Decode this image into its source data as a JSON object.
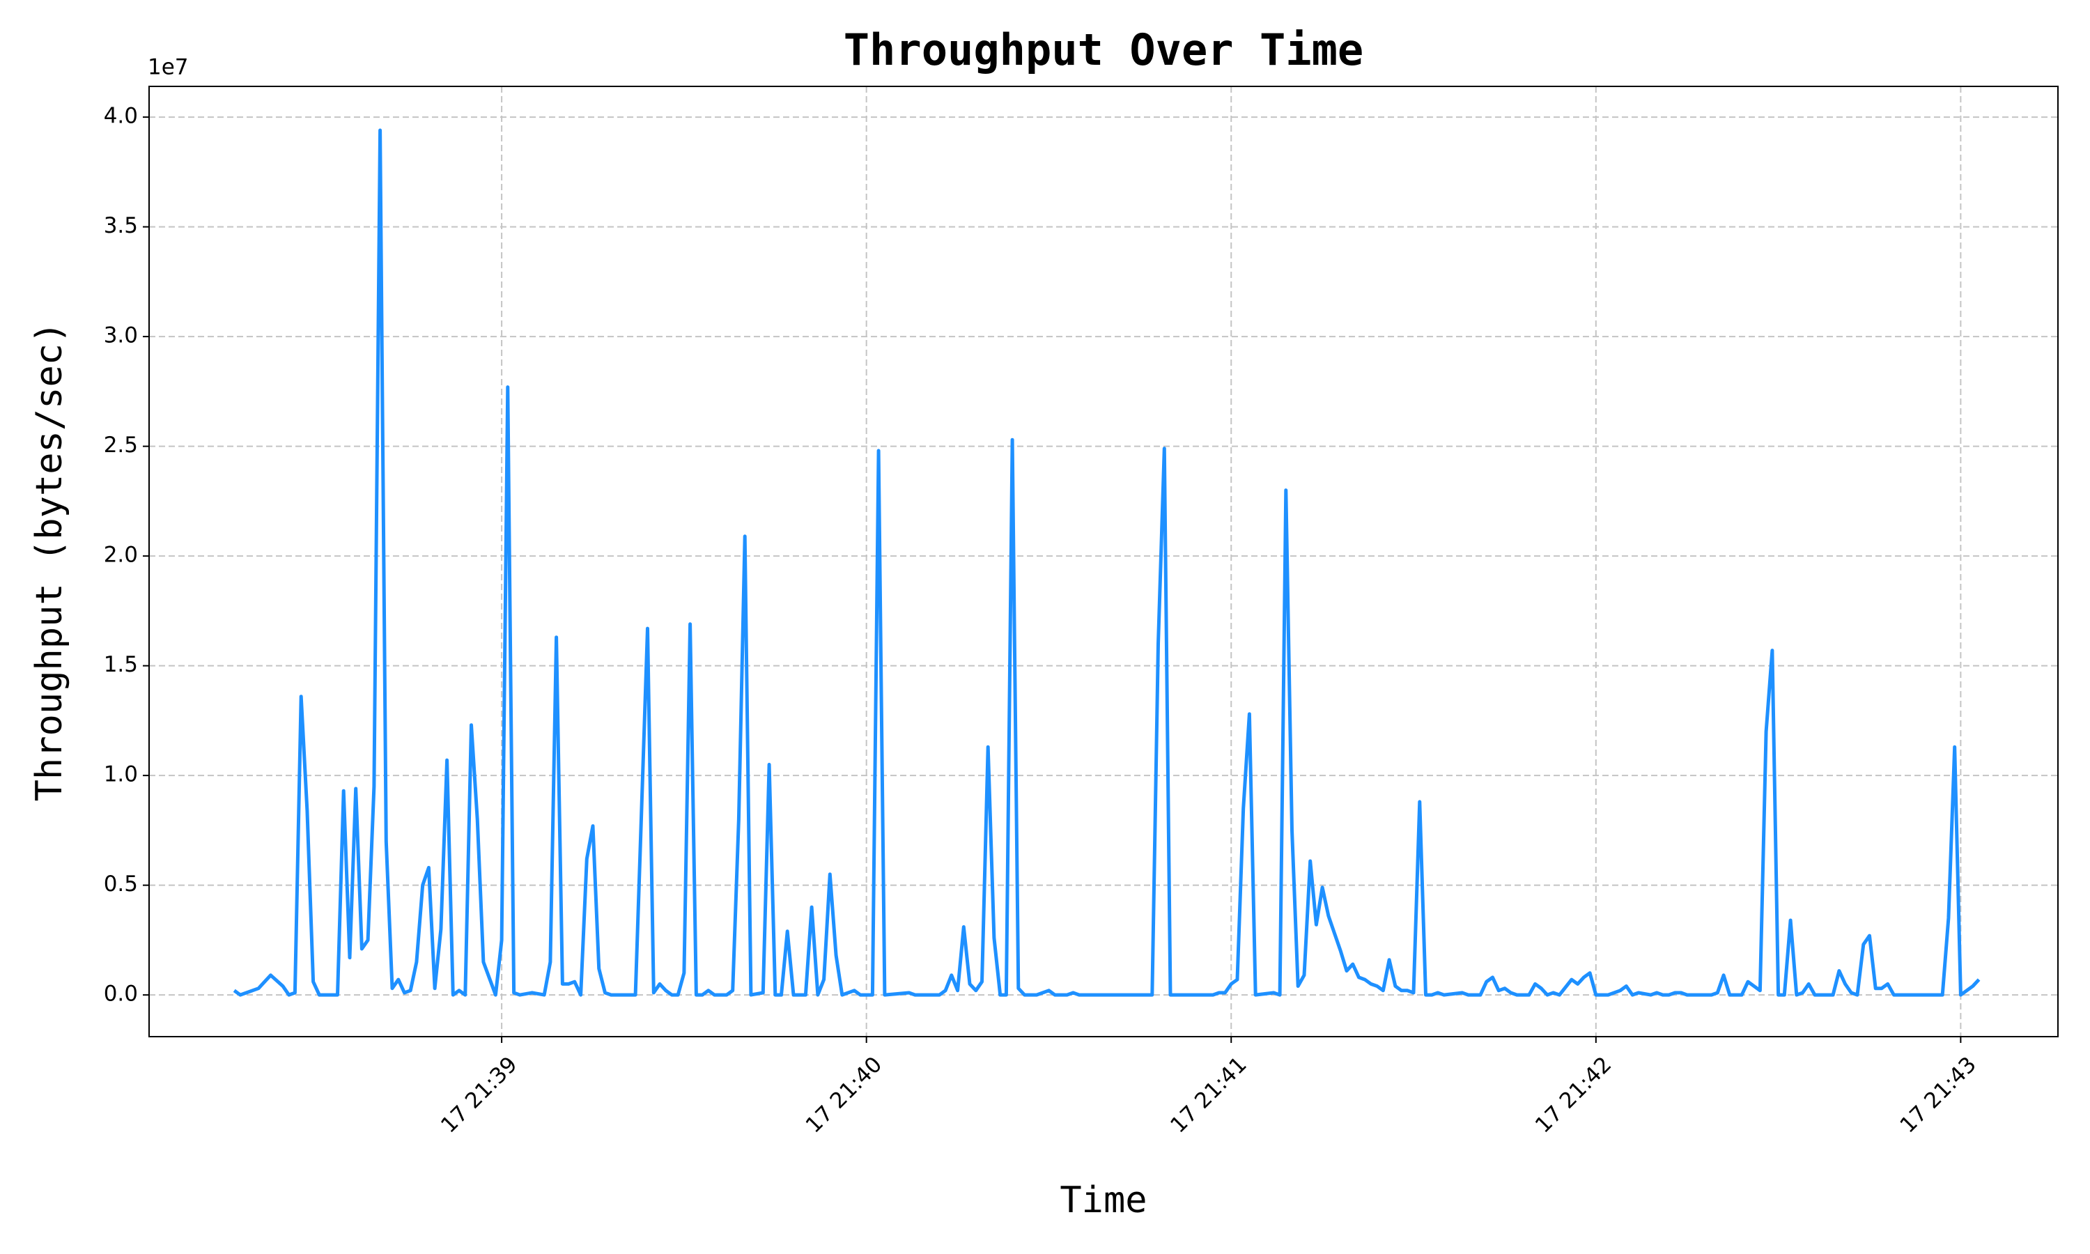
{
  "chart_data": {
    "type": "line",
    "title": "Throughput Over Time",
    "x_label": "Time",
    "y_label": "Throughput (bytes/sec)",
    "y_offset_label": "1e7",
    "color": "#1e90ff",
    "grid": true,
    "x": [
      "17 21:38:16",
      "17 21:38:17",
      "17 21:38:20",
      "17 21:38:22",
      "17 21:38:24",
      "17 21:38:25",
      "17 21:38:26",
      "17 21:38:27",
      "17 21:38:28",
      "17 21:38:29",
      "17 21:38:30",
      "17 21:38:33",
      "17 21:38:34",
      "17 21:38:35",
      "17 21:38:36",
      "17 21:38:37",
      "17 21:38:38",
      "17 21:38:39",
      "17 21:38:40",
      "17 21:38:41",
      "17 21:38:42",
      "17 21:38:43",
      "17 21:38:44",
      "17 21:38:45",
      "17 21:38:46",
      "17 21:38:47",
      "17 21:38:48",
      "17 21:38:49",
      "17 21:38:50",
      "17 21:38:51",
      "17 21:38:52",
      "17 21:38:53",
      "17 21:38:54",
      "17 21:38:55",
      "17 21:38:56",
      "17 21:38:57",
      "17 21:38:59",
      "17 21:39:00",
      "17 21:39:01",
      "17 21:39:02",
      "17 21:39:03",
      "17 21:39:05",
      "17 21:39:07",
      "17 21:39:08",
      "17 21:39:09",
      "17 21:39:10",
      "17 21:39:11",
      "17 21:39:12",
      "17 21:39:13",
      "17 21:39:14",
      "17 21:39:15",
      "17 21:39:16",
      "17 21:39:17",
      "17 21:39:18",
      "17 21:39:22",
      "17 21:39:24",
      "17 21:39:25",
      "17 21:39:26",
      "17 21:39:27",
      "17 21:39:28",
      "17 21:39:29",
      "17 21:39:30",
      "17 21:39:31",
      "17 21:39:32",
      "17 21:39:33",
      "17 21:39:34",
      "17 21:39:35",
      "17 21:39:37",
      "17 21:39:38",
      "17 21:39:39",
      "17 21:39:40",
      "17 21:39:41",
      "17 21:39:43",
      "17 21:39:44",
      "17 21:39:45",
      "17 21:39:46",
      "17 21:39:47",
      "17 21:39:48",
      "17 21:39:50",
      "17 21:39:51",
      "17 21:39:52",
      "17 21:39:53",
      "17 21:39:54",
      "17 21:39:55",
      "17 21:39:56",
      "17 21:39:58",
      "17 21:39:59",
      "17 21:40:01",
      "17 21:40:02",
      "17 21:40:03",
      "17 21:40:07",
      "17 21:40:08",
      "17 21:40:12",
      "17 21:40:13",
      "17 21:40:14",
      "17 21:40:15",
      "17 21:40:16",
      "17 21:40:17",
      "17 21:40:18",
      "17 21:40:19",
      "17 21:40:20",
      "17 21:40:21",
      "17 21:40:22",
      "17 21:40:23",
      "17 21:40:24",
      "17 21:40:25",
      "17 21:40:26",
      "17 21:40:28",
      "17 21:40:29",
      "17 21:40:30",
      "17 21:40:31",
      "17 21:40:33",
      "17 21:40:34",
      "17 21:40:35",
      "17 21:40:47",
      "17 21:40:48",
      "17 21:40:49",
      "17 21:40:50",
      "17 21:40:56",
      "17 21:40:57",
      "17 21:40:58",
      "17 21:40:59",
      "17 21:41:00",
      "17 21:41:01",
      "17 21:41:02",
      "17 21:41:03",
      "17 21:41:04",
      "17 21:41:07",
      "17 21:41:08",
      "17 21:41:09",
      "17 21:41:10",
      "17 21:41:11",
      "17 21:41:12",
      "17 21:41:13",
      "17 21:41:14",
      "17 21:41:15",
      "17 21:41:16",
      "17 21:41:17",
      "17 21:41:18",
      "17 21:41:19",
      "17 21:41:20",
      "17 21:41:21",
      "17 21:41:22",
      "17 21:41:23",
      "17 21:41:24",
      "17 21:41:25",
      "17 21:41:26",
      "17 21:41:27",
      "17 21:41:28",
      "17 21:41:29",
      "17 21:41:30",
      "17 21:41:31",
      "17 21:41:32",
      "17 21:41:33",
      "17 21:41:34",
      "17 21:41:35",
      "17 21:41:38",
      "17 21:41:39",
      "17 21:41:41",
      "17 21:41:42",
      "17 21:41:43",
      "17 21:41:44",
      "17 21:41:45",
      "17 21:41:46",
      "17 21:41:47",
      "17 21:41:49",
      "17 21:41:50",
      "17 21:41:51",
      "17 21:41:52",
      "17 21:41:53",
      "17 21:41:54",
      "17 21:41:56",
      "17 21:41:57",
      "17 21:41:58",
      "17 21:41:59",
      "17 21:42:00",
      "17 21:42:02",
      "17 21:42:04",
      "17 21:42:05",
      "17 21:42:06",
      "17 21:42:07",
      "17 21:42:09",
      "17 21:42:10",
      "17 21:42:11",
      "17 21:42:12",
      "17 21:42:13",
      "17 21:42:14",
      "17 21:42:15",
      "17 21:42:19",
      "17 21:42:20",
      "17 21:42:21",
      "17 21:42:22",
      "17 21:42:24",
      "17 21:42:25",
      "17 21:42:26",
      "17 21:42:27",
      "17 21:42:28",
      "17 21:42:29",
      "17 21:42:30",
      "17 21:42:31",
      "17 21:42:32",
      "17 21:42:33",
      "17 21:42:34",
      "17 21:42:35",
      "17 21:42:36",
      "17 21:42:39",
      "17 21:42:40",
      "17 21:42:41",
      "17 21:42:42",
      "17 21:42:43",
      "17 21:42:44",
      "17 21:42:45",
      "17 21:42:46",
      "17 21:42:47",
      "17 21:42:48",
      "17 21:42:49",
      "17 21:42:57",
      "17 21:42:58",
      "17 21:42:59",
      "17 21:43:00",
      "17 21:43:02",
      "17 21:43:03"
    ],
    "values": [
      0.02,
      0,
      0.03,
      0.09,
      0.04,
      0,
      0.01,
      1.36,
      0.84,
      0.06,
      0,
      0,
      0.93,
      0.17,
      0.94,
      0.21,
      0.25,
      0.95,
      3.94,
      0.7,
      0.03,
      0.07,
      0.01,
      0.02,
      0.15,
      0.5,
      0.58,
      0.03,
      0.3,
      1.07,
      0,
      0.02,
      0,
      1.23,
      0.8,
      0.15,
      0,
      0.25,
      2.77,
      0.01,
      0,
      0.01,
      0,
      0.15,
      1.63,
      0.05,
      0.05,
      0.06,
      0,
      0.62,
      0.77,
      0.12,
      0.01,
      0,
      0,
      1.67,
      0.01,
      0.05,
      0.02,
      0,
      0,
      0.1,
      1.69,
      0,
      0,
      0.02,
      0,
      0,
      0.02,
      0.8,
      2.09,
      0,
      0.01,
      1.05,
      0,
      0,
      0.29,
      0,
      0,
      0.4,
      0,
      0.07,
      0.55,
      0.18,
      0,
      0.02,
      0,
      0,
      2.48,
      0,
      0.01,
      0,
      0,
      0.02,
      0.09,
      0.02,
      0.31,
      0.05,
      0.02,
      0.06,
      1.13,
      0.26,
      0,
      0,
      2.53,
      0.03,
      0,
      0,
      0.01,
      0.02,
      0,
      0,
      0.01,
      0,
      0,
      1.6,
      2.49,
      0,
      0,
      0,
      0.01,
      0.01,
      0.05,
      0.07,
      0.85,
      1.28,
      0,
      0.01,
      0,
      2.3,
      0.75,
      0.04,
      0.09,
      0.61,
      0.32,
      0.49,
      0.36,
      0.28,
      0.2,
      0.11,
      0.14,
      0.08,
      0.07,
      0.05,
      0.04,
      0.02,
      0.16,
      0.04,
      0.02,
      0.02,
      0.01,
      0.88,
      0,
      0,
      0.01,
      0,
      0.01,
      0,
      0,
      0.06,
      0.08,
      0.02,
      0.03,
      0.01,
      0,
      0,
      0.05,
      0.03,
      0,
      0.01,
      0,
      0.07,
      0.05,
      0.08,
      0.1,
      0,
      0,
      0.02,
      0.04,
      0,
      0.01,
      0,
      0.01,
      0,
      0,
      0.01,
      0.01,
      0,
      0,
      0.01,
      0.09,
      0,
      0,
      0.06,
      0.04,
      0.02,
      1.2,
      1.57,
      0,
      0,
      0.34,
      0,
      0.01,
      0.05,
      0,
      0,
      0.11,
      0.05,
      0.01,
      0,
      0.23,
      0.27,
      0.03,
      0.03,
      0.05,
      0,
      0,
      0.35,
      1.13,
      0,
      0.04,
      0.07
    ],
    "xlim": [
      "17 21:38:02",
      "17 21:43:16"
    ],
    "xticks": [
      "17 21:39",
      "17 21:40",
      "17 21:41",
      "17 21:42",
      "17 21:43"
    ],
    "ylim": [
      -0.19,
      4.14
    ],
    "yticks": [
      {
        "value": 0,
        "label": "0.0"
      },
      {
        "value": 0.5,
        "label": "0.5"
      },
      {
        "value": 1,
        "label": "1.0"
      },
      {
        "value": 1.5,
        "label": "1.5"
      },
      {
        "value": 2,
        "label": "2.0"
      },
      {
        "value": 2.5,
        "label": "2.5"
      },
      {
        "value": 3,
        "label": "3.0"
      },
      {
        "value": 3.5,
        "label": "3.5"
      },
      {
        "value": 4,
        "label": "4.0"
      }
    ]
  }
}
